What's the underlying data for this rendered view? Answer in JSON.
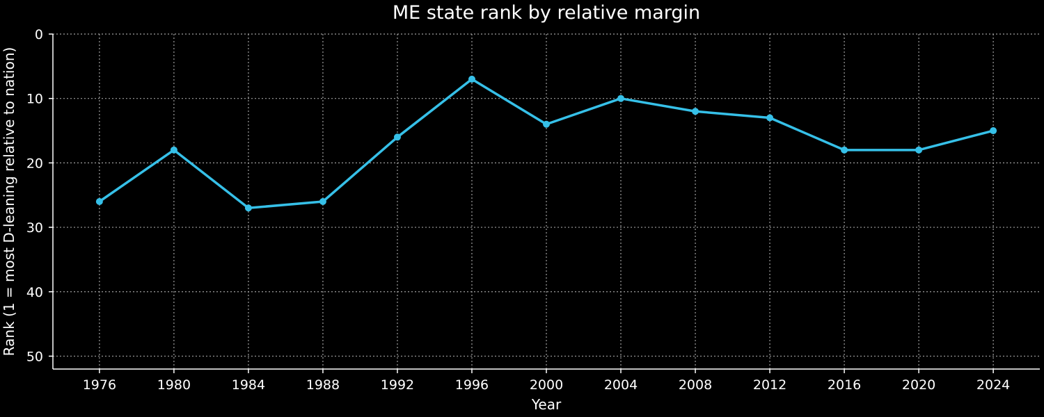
{
  "chart_data": {
    "type": "line",
    "title": "ME state rank by relative margin",
    "xlabel": "Year",
    "ylabel": "Rank (1 = most D-leaning relative to nation)",
    "x": [
      1976,
      1980,
      1984,
      1988,
      1992,
      1996,
      2000,
      2004,
      2008,
      2012,
      2016,
      2020,
      2024
    ],
    "series": [
      {
        "values": [
          26,
          18,
          27,
          26,
          16,
          7,
          14,
          10,
          12,
          13,
          18,
          18,
          15
        ]
      }
    ],
    "xticks": [
      "1976",
      "1980",
      "1984",
      "1988",
      "1992",
      "1996",
      "2000",
      "2004",
      "2008",
      "2012",
      "2016",
      "2020",
      "2024"
    ],
    "yticks": [
      "0",
      "10",
      "20",
      "30",
      "40",
      "50"
    ],
    "xlim": [
      1973.5,
      2026.5
    ],
    "ylim": [
      52,
      0
    ],
    "y_inverted": true,
    "grid": true,
    "line_color": "#36c0e8",
    "background": "#000000"
  }
}
